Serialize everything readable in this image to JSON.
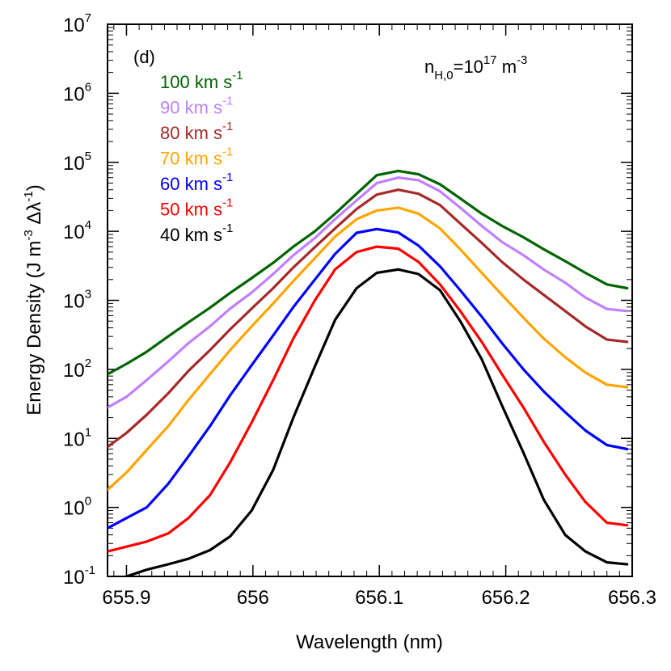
{
  "chart_data": {
    "type": "line",
    "panel_label": "(d)",
    "annotation": {
      "base": "n",
      "subscript": "H,0",
      "equals": "=10",
      "exponent": "17",
      "unit": " m",
      "unit_exponent": "-3"
    },
    "xlabel": "Wavelength (nm)",
    "ylabel": {
      "part1": "Energy Density (J m",
      "exp1": "-3",
      "part2": " Δλ",
      "exp2": "-1",
      "part3": ")"
    },
    "x_scale": "linear",
    "y_scale": "log",
    "xlim": [
      655.885,
      656.3
    ],
    "ylim": [
      0.1,
      10000000
    ],
    "x_ticks": [
      655.9,
      656,
      656.1,
      656.2,
      656.3
    ],
    "x_tick_labels": [
      "655.9",
      "656",
      "656.1",
      "656.2",
      "656.3"
    ],
    "y_tick_labels": [
      {
        "base": "10",
        "exp": "-1"
      },
      {
        "base": "10",
        "exp": "0"
      },
      {
        "base": "10",
        "exp": "1"
      },
      {
        "base": "10",
        "exp": "2"
      },
      {
        "base": "10",
        "exp": "3"
      },
      {
        "base": "10",
        "exp": "4"
      },
      {
        "base": "10",
        "exp": "5"
      },
      {
        "base": "10",
        "exp": "6"
      },
      {
        "base": "10",
        "exp": "7"
      }
    ],
    "legend_position": "top-left",
    "x": [
      655.885,
      655.9,
      655.916,
      655.933,
      655.949,
      655.966,
      655.982,
      655.999,
      656.016,
      656.032,
      656.049,
      656.065,
      656.082,
      656.098,
      656.115,
      656.131,
      656.148,
      656.164,
      656.181,
      656.197,
      656.214,
      656.23,
      656.247,
      656.263,
      656.28,
      656.296
    ],
    "series": [
      {
        "name": "100 km s",
        "name_exp": "-1",
        "color": "#006400",
        "values": [
          85,
          120,
          180,
          300,
          480,
          780,
          1280,
          2100,
          3500,
          6000,
          10000,
          18000,
          35000,
          65000,
          75000,
          67000,
          48000,
          30000,
          18000,
          12000,
          8200,
          5500,
          3700,
          2500,
          1700,
          1500
        ]
      },
      {
        "name": "90 km s",
        "name_exp": "-1",
        "color": "#C080FF",
        "values": [
          28,
          40,
          70,
          130,
          240,
          420,
          760,
          1300,
          2400,
          4500,
          8000,
          15000,
          28000,
          50000,
          60000,
          55000,
          38000,
          22000,
          12000,
          7000,
          4500,
          2800,
          1800,
          1100,
          750,
          700
        ]
      },
      {
        "name": "80 km s",
        "name_exp": "-1",
        "color": "#A52A2A",
        "values": [
          7.5,
          12,
          22,
          45,
          95,
          190,
          380,
          760,
          1500,
          3000,
          5900,
          11000,
          21000,
          34000,
          40000,
          35000,
          24000,
          13000,
          6800,
          3600,
          2000,
          1200,
          700,
          420,
          270,
          250
        ]
      },
      {
        "name": "70 km s",
        "name_exp": "-1",
        "color": "#FFA500",
        "values": [
          1.8,
          3.2,
          6.8,
          15,
          36,
          85,
          190,
          420,
          900,
          1900,
          4100,
          8400,
          15000,
          20000,
          22000,
          18000,
          11000,
          5500,
          2500,
          1200,
          560,
          280,
          150,
          90,
          60,
          55
        ]
      },
      {
        "name": "60 km s",
        "name_exp": "-1",
        "color": "#0000FF",
        "values": [
          0.5,
          0.7,
          1.0,
          2.2,
          5.5,
          15,
          42,
          115,
          310,
          800,
          2000,
          4700,
          9500,
          10800,
          9600,
          6200,
          3100,
          1400,
          580,
          240,
          100,
          48,
          24,
          13,
          8,
          7
        ]
      },
      {
        "name": "50 km s",
        "name_exp": "-1",
        "color": "#FF0000",
        "values": [
          0.23,
          0.27,
          0.32,
          0.42,
          0.7,
          1.5,
          4.5,
          17,
          70,
          280,
          1000,
          2800,
          5000,
          6000,
          5600,
          3600,
          1700,
          700,
          250,
          85,
          28,
          9,
          3.0,
          1.2,
          0.6,
          0.55
        ]
      },
      {
        "name": "40 km s",
        "name_exp": "-1",
        "color": "#000000",
        "values": [
          0.085,
          0.1,
          0.125,
          0.15,
          0.18,
          0.24,
          0.38,
          0.9,
          3.5,
          20,
          110,
          520,
          1500,
          2500,
          2800,
          2400,
          1400,
          500,
          140,
          30,
          6.2,
          1.3,
          0.4,
          0.23,
          0.16,
          0.15
        ]
      }
    ]
  }
}
